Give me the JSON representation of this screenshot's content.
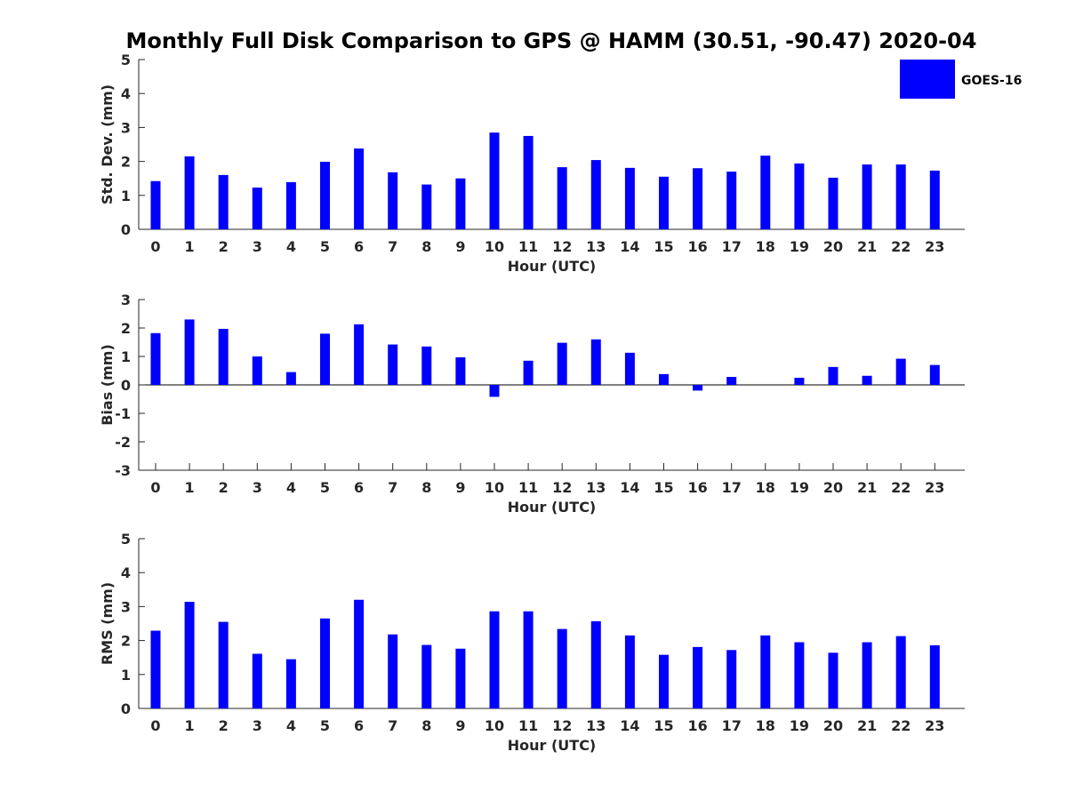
{
  "title": "Monthly Full Disk Comparison to GPS @ HAMM (30.51, -90.47) 2020-04",
  "legend": {
    "label": "GOES-16",
    "color": "#0000ff",
    "placement": "top-right"
  },
  "chart_data": [
    {
      "type": "bar",
      "title": "",
      "xlabel": "Hour (UTC)",
      "ylabel": "Std. Dev. (mm)",
      "ylim": [
        0,
        5
      ],
      "yticks": [
        0,
        1,
        2,
        3,
        4,
        5
      ],
      "categories": [
        "0",
        "1",
        "2",
        "3",
        "4",
        "5",
        "6",
        "7",
        "8",
        "9",
        "10",
        "11",
        "12",
        "13",
        "14",
        "15",
        "16",
        "17",
        "18",
        "19",
        "20",
        "21",
        "22",
        "23"
      ],
      "series": [
        {
          "name": "GOES-16",
          "color": "#0000ff",
          "values": [
            1.42,
            2.15,
            1.6,
            1.23,
            1.39,
            1.99,
            2.38,
            1.68,
            1.32,
            1.5,
            2.85,
            2.75,
            1.83,
            2.04,
            1.81,
            1.55,
            1.8,
            1.7,
            2.17,
            1.94,
            1.52,
            1.91,
            1.91,
            1.73
          ]
        }
      ]
    },
    {
      "type": "bar",
      "title": "",
      "xlabel": "Hour (UTC)",
      "ylabel": "Bias (mm)",
      "ylim": [
        -3,
        3
      ],
      "yticks": [
        -3,
        -2,
        -1,
        0,
        1,
        2,
        3
      ],
      "categories": [
        "0",
        "1",
        "2",
        "3",
        "4",
        "5",
        "6",
        "7",
        "8",
        "9",
        "10",
        "11",
        "12",
        "13",
        "14",
        "15",
        "16",
        "17",
        "18",
        "19",
        "20",
        "21",
        "22",
        "23"
      ],
      "series": [
        {
          "name": "GOES-16",
          "color": "#0000ff",
          "values": [
            1.82,
            2.3,
            1.97,
            1.0,
            0.45,
            1.8,
            2.13,
            1.42,
            1.35,
            0.97,
            -0.42,
            0.85,
            1.48,
            1.6,
            1.13,
            0.38,
            -0.2,
            0.28,
            0.0,
            0.25,
            0.63,
            0.32,
            0.92,
            0.7
          ]
        }
      ]
    },
    {
      "type": "bar",
      "title": "",
      "xlabel": "Hour (UTC)",
      "ylabel": "RMS (mm)",
      "ylim": [
        0,
        5
      ],
      "yticks": [
        0,
        1,
        2,
        3,
        4,
        5
      ],
      "categories": [
        "0",
        "1",
        "2",
        "3",
        "4",
        "5",
        "6",
        "7",
        "8",
        "9",
        "10",
        "11",
        "12",
        "13",
        "14",
        "15",
        "16",
        "17",
        "18",
        "19",
        "20",
        "21",
        "22",
        "23"
      ],
      "series": [
        {
          "name": "GOES-16",
          "color": "#0000ff",
          "values": [
            2.29,
            3.14,
            2.55,
            1.61,
            1.45,
            2.65,
            3.2,
            2.18,
            1.87,
            1.76,
            2.86,
            2.86,
            2.34,
            2.57,
            2.15,
            1.58,
            1.81,
            1.72,
            2.15,
            1.95,
            1.64,
            1.95,
            2.13,
            1.86
          ]
        }
      ]
    }
  ]
}
